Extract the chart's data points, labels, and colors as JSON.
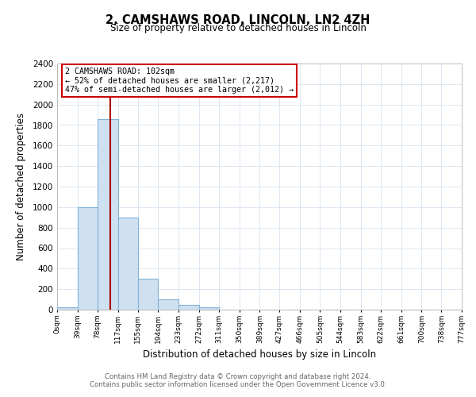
{
  "title": "2, CAMSHAWS ROAD, LINCOLN, LN2 4ZH",
  "subtitle": "Size of property relative to detached houses in Lincoln",
  "xlabel": "Distribution of detached houses by size in Lincoln",
  "ylabel": "Number of detached properties",
  "bar_edges": [
    0,
    39,
    78,
    117,
    155,
    194,
    233,
    272,
    311,
    350,
    389,
    427,
    466,
    505,
    544,
    583,
    622,
    661,
    700,
    738,
    777
  ],
  "bar_heights": [
    20,
    1000,
    1860,
    900,
    300,
    100,
    45,
    20,
    0,
    0,
    0,
    0,
    0,
    0,
    0,
    0,
    0,
    0,
    0,
    0
  ],
  "tick_labels": [
    "0sqm",
    "39sqm",
    "78sqm",
    "117sqm",
    "155sqm",
    "194sqm",
    "233sqm",
    "272sqm",
    "311sqm",
    "350sqm",
    "389sqm",
    "427sqm",
    "466sqm",
    "505sqm",
    "544sqm",
    "583sqm",
    "622sqm",
    "661sqm",
    "700sqm",
    "738sqm",
    "777sqm"
  ],
  "bar_color": "#cfe0f1",
  "bar_edge_color": "#7fb3d9",
  "property_line_x": 102,
  "property_line_color": "#aa0000",
  "ylim": [
    0,
    2400
  ],
  "yticks": [
    0,
    200,
    400,
    600,
    800,
    1000,
    1200,
    1400,
    1600,
    1800,
    2000,
    2200,
    2400
  ],
  "annotation_title": "2 CAMSHAWS ROAD: 102sqm",
  "annotation_line1": "← 52% of detached houses are smaller (2,217)",
  "annotation_line2": "47% of semi-detached houses are larger (2,012) →",
  "footer1": "Contains HM Land Registry data © Crown copyright and database right 2024.",
  "footer2": "Contains public sector information licensed under the Open Government Licence v3.0.",
  "background_color": "#ffffff",
  "grid_color": "#dce6f1"
}
